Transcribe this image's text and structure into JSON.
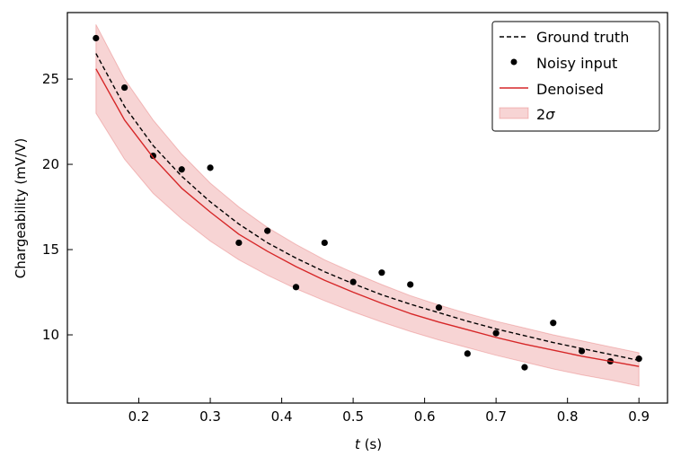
{
  "chart_data": {
    "type": "line",
    "xlabel_var": "t",
    "xlabel_unit": " (s)",
    "ylabel": "Chargeability (mV/V)",
    "xlim": [
      0.1,
      0.94
    ],
    "ylim": [
      6.0,
      28.9
    ],
    "x_ticks": [
      0.2,
      0.3,
      0.4,
      0.5,
      0.6,
      0.7,
      0.8,
      0.9
    ],
    "x_tick_labels": [
      "0.2",
      "0.3",
      "0.4",
      "0.5",
      "0.6",
      "0.7",
      "0.8",
      "0.9"
    ],
    "y_ticks": [
      10,
      15,
      20,
      25
    ],
    "y_tick_labels": [
      "10",
      "15",
      "20",
      "25"
    ],
    "grid": false,
    "legend_position": "top-right",
    "x": [
      0.14,
      0.18,
      0.22,
      0.26,
      0.3,
      0.34,
      0.38,
      0.42,
      0.46,
      0.5,
      0.54,
      0.58,
      0.62,
      0.66,
      0.7,
      0.74,
      0.78,
      0.82,
      0.86,
      0.9
    ],
    "series": [
      {
        "name": "Ground truth",
        "style": "dashed",
        "color": "#000000",
        "values": [
          26.5,
          23.4,
          21.1,
          19.3,
          17.8,
          16.5,
          15.4,
          14.5,
          13.7,
          13.0,
          12.35,
          11.8,
          11.3,
          10.8,
          10.35,
          9.95,
          9.55,
          9.2,
          8.85,
          8.5
        ]
      },
      {
        "name": "Noisy input",
        "style": "markers",
        "color": "#000000",
        "values": [
          27.4,
          24.5,
          20.5,
          19.7,
          19.8,
          15.4,
          16.1,
          12.8,
          15.4,
          13.1,
          13.65,
          12.95,
          11.6,
          8.9,
          10.1,
          8.1,
          10.7,
          9.05,
          8.45,
          8.6
        ]
      },
      {
        "name": "Denoised",
        "style": "solid",
        "color": "#d62728",
        "values": [
          25.6,
          22.6,
          20.4,
          18.6,
          17.2,
          15.9,
          14.9,
          14.0,
          13.2,
          12.5,
          11.85,
          11.25,
          10.75,
          10.3,
          9.85,
          9.45,
          9.1,
          8.75,
          8.45,
          8.15
        ]
      }
    ],
    "band": {
      "name": "2",
      "name_symbol": "σ",
      "color": "#d62728",
      "lower": [
        23.0,
        20.3,
        18.3,
        16.8,
        15.5,
        14.4,
        13.5,
        12.7,
        12.0,
        11.35,
        10.75,
        10.2,
        9.7,
        9.25,
        8.8,
        8.4,
        8.0,
        7.65,
        7.35,
        7.0
      ],
      "upper": [
        28.2,
        25.0,
        22.6,
        20.6,
        18.9,
        17.5,
        16.3,
        15.3,
        14.4,
        13.65,
        12.95,
        12.3,
        11.75,
        11.25,
        10.8,
        10.4,
        10.0,
        9.65,
        9.3,
        8.95
      ]
    }
  }
}
